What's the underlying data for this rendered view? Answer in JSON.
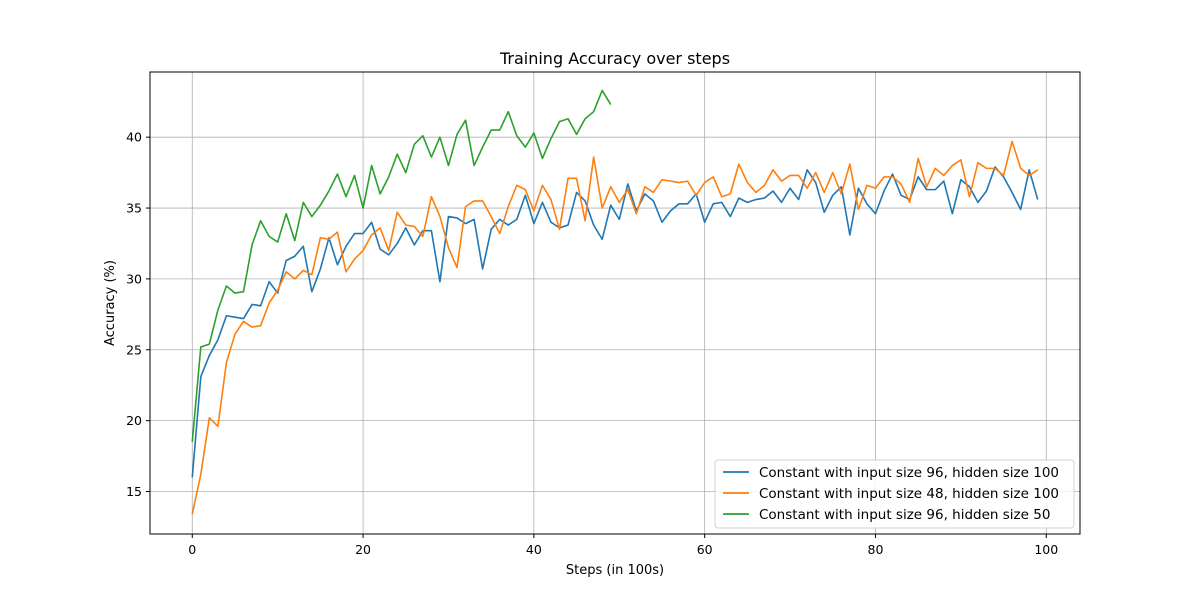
{
  "chart_data": {
    "type": "line",
    "title": "Training Accuracy over steps",
    "xlabel": "Steps (in 100s)",
    "ylabel": "Accuracy (%)",
    "xlim": [
      -4.95,
      103.95
    ],
    "ylim": [
      12.0,
      44.6
    ],
    "x_ticks": [
      0,
      20,
      40,
      60,
      80,
      100
    ],
    "y_ticks": [
      15,
      20,
      25,
      30,
      35,
      40
    ],
    "grid": true,
    "legend_position": "lower-right",
    "series": [
      {
        "name": "Constant with input size 96, hidden size 100",
        "color": "#1f77b4",
        "values": [
          16.0,
          23.1,
          24.6,
          25.7,
          27.4,
          27.3,
          27.2,
          28.2,
          28.1,
          29.8,
          29.0,
          31.3,
          31.6,
          32.3,
          29.1,
          30.7,
          32.9,
          31.0,
          32.3,
          33.2,
          33.2,
          34.0,
          32.1,
          31.7,
          32.5,
          33.6,
          32.4,
          33.4,
          33.4,
          29.8,
          34.4,
          34.3,
          33.9,
          34.2,
          30.7,
          33.5,
          34.2,
          33.8,
          34.2,
          35.9,
          33.9,
          35.4,
          34.0,
          33.6,
          33.8,
          36.1,
          35.5,
          33.8,
          32.8,
          35.2,
          34.2,
          36.7,
          34.8,
          36.0,
          35.5,
          34.0,
          34.8,
          35.3,
          35.3,
          36.0,
          34.0,
          35.3,
          35.4,
          34.4,
          35.7,
          35.4,
          35.6,
          35.7,
          36.2,
          35.4,
          36.4,
          35.6,
          37.7,
          36.8,
          34.7,
          35.9,
          36.5,
          33.1,
          36.4,
          35.3,
          34.6,
          36.2,
          37.4,
          35.9,
          35.6,
          37.2,
          36.3,
          36.3,
          36.9,
          34.6,
          37.0,
          36.5,
          35.4,
          36.2,
          37.9,
          37.2,
          36.1,
          34.9,
          37.7,
          35.6
        ]
      },
      {
        "name": "Constant with input size 48, hidden size 100",
        "color": "#ff7f0e",
        "values": [
          13.4,
          16.2,
          20.2,
          19.6,
          24.1,
          26.1,
          27.0,
          26.6,
          26.7,
          28.3,
          29.2,
          30.5,
          30.0,
          30.6,
          30.3,
          32.9,
          32.8,
          33.3,
          30.5,
          31.4,
          32.0,
          33.1,
          33.6,
          32.0,
          34.7,
          33.8,
          33.7,
          33.0,
          35.8,
          34.4,
          32.2,
          30.8,
          35.1,
          35.5,
          35.5,
          34.4,
          33.2,
          35.1,
          36.6,
          36.3,
          34.8,
          36.6,
          35.6,
          33.5,
          37.1,
          37.1,
          34.1,
          38.6,
          35.0,
          36.5,
          35.4,
          36.3,
          34.6,
          36.5,
          36.1,
          37.0,
          36.9,
          36.8,
          36.9,
          35.9,
          36.8,
          37.2,
          35.8,
          36.0,
          38.1,
          36.8,
          36.1,
          36.6,
          37.7,
          36.9,
          37.3,
          37.3,
          36.4,
          37.5,
          36.1,
          37.5,
          36.0,
          38.1,
          34.9,
          36.6,
          36.4,
          37.2,
          37.2,
          36.7,
          35.4,
          38.5,
          36.5,
          37.8,
          37.3,
          38.0,
          38.4,
          35.8,
          38.2,
          37.8,
          37.8,
          37.3,
          39.7,
          37.8,
          37.3,
          37.7
        ]
      },
      {
        "name": "Constant with input size 96, hidden size 50",
        "color": "#2ca02c",
        "values": [
          18.5,
          25.2,
          25.4,
          27.8,
          29.5,
          29.0,
          29.1,
          32.4,
          34.1,
          33.0,
          32.6,
          34.6,
          32.7,
          35.4,
          34.4,
          35.2,
          36.2,
          37.4,
          35.8,
          37.3,
          35.0,
          38.0,
          36.0,
          37.2,
          38.8,
          37.5,
          39.5,
          40.1,
          38.6,
          40.0,
          38.0,
          40.2,
          41.2,
          38.0,
          39.3,
          40.5,
          40.5,
          41.8,
          40.1,
          39.3,
          40.3,
          38.5,
          39.9,
          41.1,
          41.3,
          40.2,
          41.3,
          41.8,
          43.3,
          42.3
        ]
      }
    ]
  }
}
